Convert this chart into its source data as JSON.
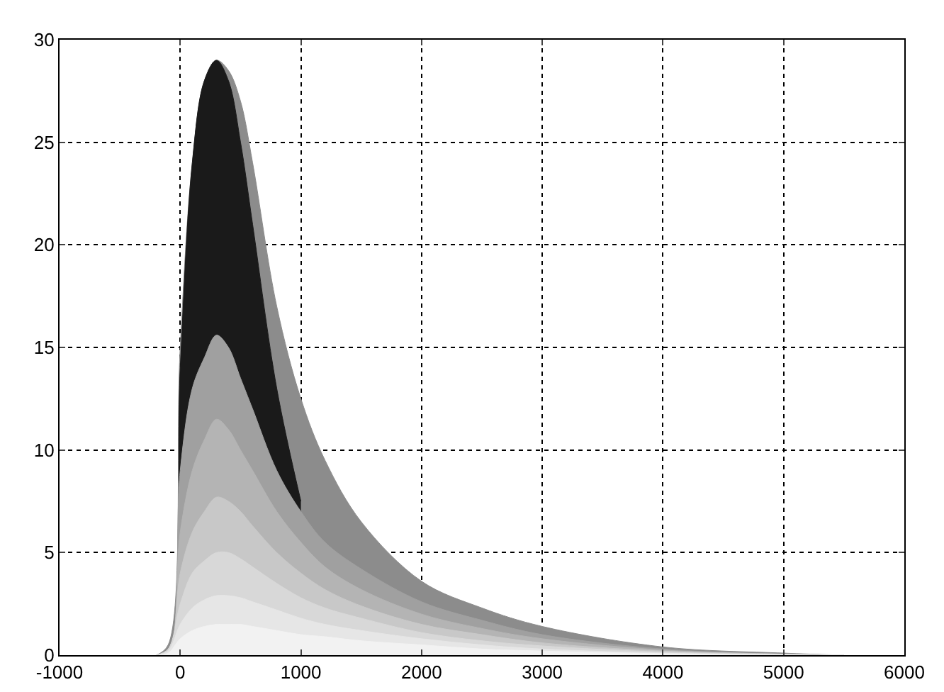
{
  "chart_data": {
    "type": "area",
    "x": [
      -200,
      -100,
      0,
      100,
      200,
      300,
      400,
      500,
      600,
      800,
      1000,
      1200,
      1500,
      2000,
      2500,
      3000,
      4000,
      5000,
      5500
    ],
    "series": [
      {
        "color": "#8c8c8c",
        "values": [
          0,
          0.5,
          15,
          24,
          28,
          29,
          28.5,
          27,
          24,
          17,
          12.5,
          9.5,
          6.5,
          3.6,
          2.3,
          1.4,
          0.4,
          0.1,
          0
        ]
      },
      {
        "color": "#1a1a1a",
        "values": [
          0,
          0,
          14,
          24,
          28,
          29,
          28,
          25,
          21,
          13,
          7.5,
          null,
          null,
          null,
          null,
          null,
          null,
          null,
          null
        ]
      },
      {
        "color": "#a0a0a0",
        "values": [
          0,
          0,
          9,
          13,
          14.5,
          15.6,
          15,
          13.5,
          12,
          9,
          7,
          5.5,
          4.2,
          2.6,
          1.7,
          1,
          0.3,
          0.05,
          0
        ]
      },
      {
        "color": "#b4b4b4",
        "values": [
          0,
          0,
          6,
          9,
          10.5,
          11.5,
          11,
          10,
          9,
          7,
          5.5,
          4.3,
          3.2,
          2,
          1.3,
          0.8,
          0.25,
          0.05,
          0
        ]
      },
      {
        "color": "#c8c8c8",
        "values": [
          0,
          0,
          4,
          6,
          7,
          7.7,
          7.5,
          7,
          6.3,
          5,
          4,
          3.2,
          2.4,
          1.5,
          1,
          0.6,
          0.2,
          0.05,
          0
        ]
      },
      {
        "color": "#d8d8d8",
        "values": [
          0,
          0.3,
          2.5,
          4,
          4.6,
          5,
          5,
          4.7,
          4.3,
          3.5,
          2.8,
          2.3,
          1.8,
          1.1,
          0.7,
          0.45,
          0.15,
          0.03,
          0
        ]
      },
      {
        "color": "#e6e6e6",
        "values": [
          0,
          0.2,
          1.5,
          2.3,
          2.7,
          2.9,
          2.9,
          2.8,
          2.6,
          2.2,
          1.8,
          1.5,
          1.2,
          0.8,
          0.5,
          0.3,
          0.1,
          0.02,
          0
        ]
      },
      {
        "color": "#f2f2f2",
        "values": [
          0,
          0.1,
          0.8,
          1.2,
          1.4,
          1.5,
          1.5,
          1.5,
          1.4,
          1.2,
          1,
          0.9,
          0.7,
          0.5,
          0.3,
          0.2,
          0.07,
          0.01,
          0
        ]
      }
    ],
    "xlim": [
      -1000,
      6000
    ],
    "xticks": [
      -1000,
      0,
      1000,
      2000,
      3000,
      4000,
      5000,
      6000
    ],
    "ylim": [
      0,
      30
    ],
    "yticks": [
      0,
      5,
      10,
      15,
      20,
      25,
      30
    ],
    "grid": true
  }
}
